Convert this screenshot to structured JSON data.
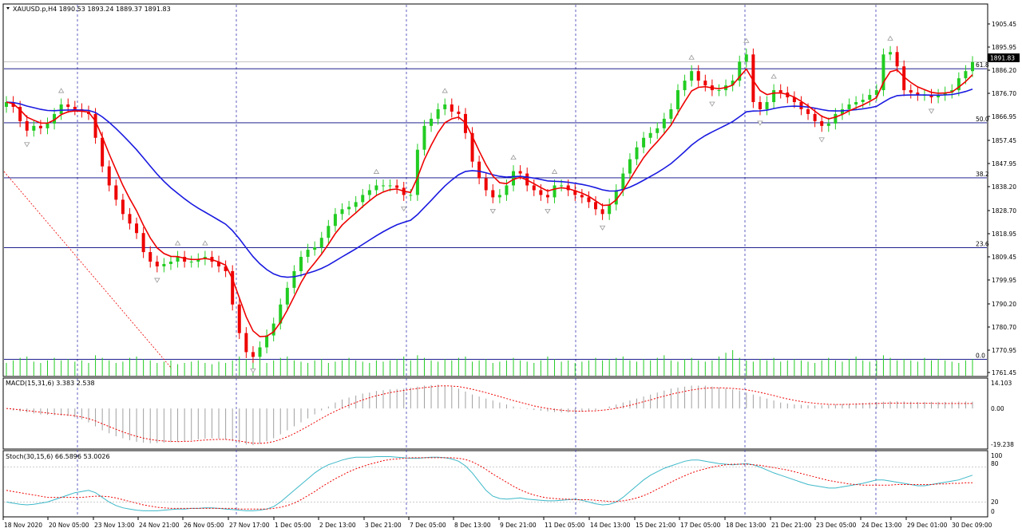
{
  "chart_data": {
    "type": "candlestick",
    "symbol_header": "XAUUSD.p,H4  1890.53 1893.24 1889.37 1891.83",
    "current_price_label": "1891.83",
    "price_axis_ticks": [
      "1905.45",
      "1895.95",
      "1886.20",
      "1876.70",
      "1866.95",
      "1857.45",
      "1847.95",
      "1838.20",
      "1828.70",
      "1818.95",
      "1809.45",
      "1799.95",
      "1790.20",
      "1780.70",
      "1770.95",
      "1761.45"
    ],
    "price_range": [
      1761.45,
      1910.5
    ],
    "time_axis_labels": [
      "18 Nov 2020",
      "20 Nov 05:00",
      "23 Nov 13:00",
      "24 Nov 21:00",
      "26 Nov 05:00",
      "27 Nov 17:00",
      "1 Dec 05:00",
      "2 Dec 13:00",
      "3 Dec 21:00",
      "7 Dec 05:00",
      "8 Dec 13:00",
      "9 Dec 21:00",
      "11 Dec 05:00",
      "14 Dec 13:00",
      "15 Dec 21:00",
      "17 Dec 05:00",
      "18 Dec 13:00",
      "21 Dec 21:00",
      "23 Dec 05:00",
      "24 Dec 13:00",
      "29 Dec 01:00",
      "30 Dec 09:00"
    ],
    "fibonacci_levels": [
      {
        "label": "61.8",
        "price": 1889.0
      },
      {
        "label": "50.0",
        "price": 1866.3
      },
      {
        "label": "38.2",
        "price": 1843.2
      },
      {
        "label": "23.6",
        "price": 1813.9
      },
      {
        "label": "0.0",
        "price": 1767.0
      }
    ],
    "series_colors": {
      "bull": "#22cc22",
      "bear": "#ee0000",
      "fast_ma": "#ee0000",
      "slow_ma": "#1a1ae0",
      "fractal": "#9a9a9a"
    },
    "closes": [
      1875,
      1873,
      1867,
      1863,
      1865,
      1864,
      1866,
      1870,
      1874,
      1873,
      1872,
      1871,
      1870,
      1860,
      1848,
      1840,
      1834,
      1828,
      1824,
      1820,
      1812,
      1808,
      1806,
      1807,
      1808,
      1810,
      1808,
      1808,
      1809,
      1810,
      1808,
      1806,
      1804,
      1790,
      1778,
      1770,
      1768,
      1772,
      1777,
      1782,
      1790,
      1797,
      1804,
      1810,
      1813,
      1814,
      1818,
      1823,
      1828,
      1830,
      1831,
      1833,
      1836,
      1838,
      1840,
      1840,
      1840,
      1839,
      1836,
      1836,
      1855,
      1865,
      1868,
      1872,
      1874,
      1871,
      1870,
      1862,
      1850,
      1843,
      1838,
      1835,
      1836,
      1840,
      1846,
      1845,
      1840,
      1838,
      1836,
      1835,
      1840,
      1840,
      1838,
      1836,
      1835,
      1833,
      1830,
      1828,
      1832,
      1838,
      1845,
      1851,
      1856,
      1860,
      1862,
      1864,
      1868,
      1872,
      1880,
      1884,
      1888,
      1884,
      1882,
      1880,
      1880,
      1882,
      1884,
      1892,
      1895,
      1875,
      1872,
      1875,
      1880,
      1879,
      1877,
      1875,
      1872,
      1870,
      1867,
      1865,
      1866,
      1870,
      1872,
      1874,
      1875,
      1876,
      1878,
      1880,
      1895,
      1896,
      1890,
      1880,
      1879,
      1878,
      1878,
      1877,
      1878,
      1879,
      1880,
      1885,
      1888,
      1891.8
    ],
    "volume_bars": [
      10,
      12,
      14,
      15,
      11,
      10,
      12,
      14,
      12,
      13,
      11,
      12,
      10,
      16,
      14,
      12,
      10,
      11,
      14,
      15,
      13,
      12,
      10,
      11,
      12,
      9,
      10,
      11,
      12,
      10,
      9,
      11,
      10,
      12,
      15,
      13,
      12,
      11,
      10,
      12,
      14,
      15,
      12,
      11,
      10,
      12,
      13,
      10,
      11,
      12,
      14,
      12,
      11,
      10,
      12,
      11,
      12,
      13,
      15,
      12,
      16,
      14,
      12,
      11,
      13,
      12,
      14,
      15,
      11,
      12,
      13,
      10,
      11,
      12,
      14,
      12,
      11,
      10,
      12,
      15,
      13,
      11,
      12,
      10,
      11,
      12,
      14,
      12,
      13,
      14,
      15,
      12,
      11,
      13,
      12,
      14,
      16,
      12,
      11,
      13,
      14,
      12,
      11,
      12,
      15,
      18,
      20,
      14,
      12,
      11,
      13,
      12,
      14,
      11,
      12,
      13,
      12,
      11,
      10,
      12,
      14,
      12,
      11,
      13,
      15,
      12,
      11,
      12,
      16,
      14,
      12,
      13,
      12,
      11,
      14,
      12,
      13,
      12,
      11,
      10,
      12,
      13
    ],
    "macd": {
      "label": "MACD(15,31,6) 3.383 2.538",
      "scale_top": "14.103",
      "scale_mid": "0.00",
      "scale_bottom": "-19.238",
      "range": [
        -19.238,
        14.103
      ],
      "signal_color": "#ee0000",
      "histogram_color": "#a0a0a0",
      "histogram": [
        0.0,
        -1.0,
        -1.5,
        -2.0,
        -2.5,
        -3.0,
        -3.2,
        -3.4,
        -3.6,
        -3.8,
        -4.5,
        -5.5,
        -7,
        -9,
        -11,
        -12.5,
        -14,
        -15,
        -16,
        -16.8,
        -17.2,
        -17.5,
        -17.4,
        -17.2,
        -17.0,
        -16.8,
        -16.5,
        -16.0,
        -15.6,
        -15.2,
        -15.0,
        -15.2,
        -15.6,
        -16.5,
        -17.5,
        -18.2,
        -18.5,
        -17.8,
        -16.5,
        -15.0,
        -13.0,
        -11.0,
        -9.0,
        -7.0,
        -5.0,
        -3.0,
        -1.0,
        1.0,
        3.0,
        4.5,
        5.5,
        6.5,
        7.5,
        8.0,
        8.8,
        9.2,
        9.6,
        9.8,
        10.0,
        10.5,
        11.0,
        11.5,
        11.8,
        12.0,
        11.5,
        11.0,
        10.0,
        8.5,
        7.0,
        6.0,
        5.0,
        4.0,
        3.0,
        2.0,
        1.0,
        0.3,
        -0.3,
        -0.8,
        -1.2,
        -1.5,
        -1.8,
        -2.0,
        -2.0,
        -1.8,
        -1.6,
        -1.2,
        -0.8,
        0.0,
        1.0,
        2.0,
        3.0,
        4.0,
        5.0,
        6.0,
        7.0,
        8.0,
        9.0,
        10.0,
        10.5,
        11.0,
        11.5,
        11.5,
        11.5,
        11.0,
        10.5,
        10.0,
        9.5,
        9.0,
        8.0,
        7.0,
        6.0,
        5.0,
        4.0,
        3.0,
        2.5,
        2.0,
        1.8,
        1.6,
        1.5,
        1.6,
        1.8,
        2.0,
        2.2,
        2.4,
        2.6,
        2.8,
        3.0,
        3.2,
        3.4,
        3.6,
        3.6,
        3.5,
        3.4,
        3.3,
        3.3,
        3.3,
        3.3,
        3.3,
        3.4,
        3.5,
        3.5,
        3.4
      ],
      "signal": [
        0.0,
        -0.3,
        -0.7,
        -1.1,
        -1.5,
        -1.9,
        -2.3,
        -2.7,
        -3.0,
        -3.3,
        -3.7,
        -4.3,
        -5.1,
        -6.3,
        -7.7,
        -9.1,
        -10.5,
        -11.8,
        -13.0,
        -14.0,
        -14.9,
        -15.6,
        -16.1,
        -16.4,
        -16.6,
        -16.7,
        -16.6,
        -16.5,
        -16.2,
        -15.9,
        -15.7,
        -15.6,
        -15.6,
        -15.9,
        -16.4,
        -17.0,
        -17.5,
        -17.6,
        -17.3,
        -16.7,
        -15.6,
        -14.3,
        -12.7,
        -10.9,
        -9.0,
        -7.0,
        -5.0,
        -3.1,
        -1.4,
        0.2,
        1.7,
        3.0,
        4.3,
        5.4,
        6.4,
        7.2,
        8.0,
        8.6,
        9.1,
        9.6,
        10.1,
        10.5,
        10.9,
        11.3,
        11.4,
        11.3,
        11.0,
        10.4,
        9.7,
        8.9,
        8.0,
        7.0,
        6.0,
        5.0,
        4.0,
        3.1,
        2.2,
        1.3,
        0.6,
        0.0,
        -0.5,
        -0.9,
        -1.2,
        -1.3,
        -1.4,
        -1.3,
        -1.2,
        -0.9,
        -0.5,
        0.1,
        0.8,
        1.6,
        2.5,
        3.4,
        4.3,
        5.3,
        6.2,
        7.1,
        7.9,
        8.6,
        9.3,
        9.8,
        10.2,
        10.4,
        10.4,
        10.3,
        10.1,
        9.8,
        9.4,
        8.8,
        8.1,
        7.3,
        6.5,
        5.6,
        4.8,
        4.1,
        3.5,
        3.0,
        2.6,
        2.3,
        2.1,
        2.0,
        2.0,
        2.1,
        2.2,
        2.3,
        2.4,
        2.5,
        2.6,
        2.7,
        2.7,
        2.7,
        2.6,
        2.6,
        2.6,
        2.6,
        2.5,
        2.5,
        2.5,
        2.5,
        2.5,
        2.5
      ]
    },
    "stochastic": {
      "label": "Stoch(30,15,6) 66.5896 53.0026",
      "scale_labels": [
        "100",
        "80",
        "20",
        "0"
      ],
      "range": [
        0,
        100
      ],
      "k_color": "#3db8c8",
      "d_color": "#ee0000",
      "levels": [
        80,
        20
      ],
      "k": [
        20,
        18,
        16,
        15,
        16,
        18,
        20,
        24,
        28,
        32,
        36,
        38,
        40,
        36,
        28,
        20,
        14,
        10,
        8,
        6,
        5,
        5,
        5,
        6,
        7,
        8,
        8,
        9,
        9,
        10,
        10,
        9,
        8,
        7,
        6,
        5,
        5,
        6,
        8,
        12,
        20,
        30,
        40,
        50,
        60,
        70,
        78,
        84,
        88,
        92,
        95,
        97,
        97,
        97,
        98,
        98,
        98,
        97,
        96,
        95,
        95,
        96,
        97,
        97,
        96,
        94,
        90,
        82,
        70,
        55,
        40,
        30,
        26,
        25,
        26,
        27,
        25,
        24,
        23,
        22,
        22,
        23,
        24,
        25,
        23,
        20,
        17,
        15,
        16,
        20,
        28,
        38,
        48,
        58,
        66,
        72,
        78,
        82,
        86,
        90,
        92,
        92,
        90,
        88,
        86,
        85,
        84,
        85,
        86,
        84,
        80,
        75,
        70,
        66,
        62,
        58,
        54,
        50,
        48,
        46,
        44,
        44,
        46,
        48,
        50,
        52,
        55,
        58,
        58,
        56,
        54,
        52,
        50,
        48,
        48,
        50,
        52,
        54,
        56,
        58,
        62,
        66
      ],
      "d": [
        40,
        38,
        36,
        34,
        32,
        30,
        28,
        28,
        28,
        28,
        28,
        28,
        29,
        30,
        30,
        29,
        27,
        24,
        21,
        18,
        15,
        13,
        11,
        10,
        9,
        9,
        9,
        9,
        9,
        9,
        9,
        9,
        9,
        9,
        8,
        8,
        8,
        8,
        8,
        9,
        11,
        14,
        18,
        24,
        31,
        38,
        46,
        53,
        60,
        66,
        72,
        77,
        81,
        85,
        88,
        91,
        93,
        94,
        95,
        96,
        96,
        96,
        96,
        96,
        96,
        96,
        95,
        93,
        89,
        83,
        76,
        68,
        61,
        54,
        47,
        41,
        36,
        32,
        29,
        27,
        26,
        25,
        25,
        24,
        24,
        24,
        23,
        22,
        21,
        21,
        22,
        24,
        27,
        31,
        36,
        42,
        48,
        54,
        60,
        65,
        70,
        74,
        77,
        80,
        82,
        84,
        85,
        85,
        85,
        84,
        83,
        81,
        79,
        77,
        75,
        72,
        69,
        66,
        63,
        60,
        57,
        55,
        53,
        51,
        50,
        49,
        49,
        49,
        49,
        49,
        50,
        50,
        50,
        50,
        50,
        50,
        51,
        51,
        52,
        52,
        53,
        53
      ]
    }
  }
}
